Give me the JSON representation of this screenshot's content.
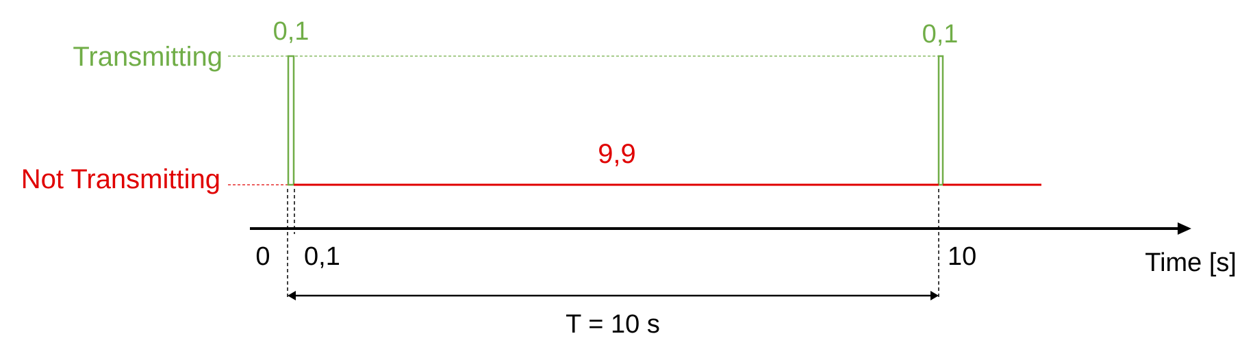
{
  "labels": {
    "transmitting": "Transmitting",
    "not_transmitting": "Not Transmitting",
    "pulse_start_duration": "0,1",
    "pulse_end_duration": "0,1",
    "idle_duration": "9,9",
    "tick_zero": "0",
    "tick_pulse": "0,1",
    "tick_period": "10",
    "axis_title": "Time [s]",
    "period": "T = 10 s"
  },
  "colors": {
    "transmitting": "#70ad47",
    "not_transmitting": "#e00000",
    "axis": "#000000"
  }
}
